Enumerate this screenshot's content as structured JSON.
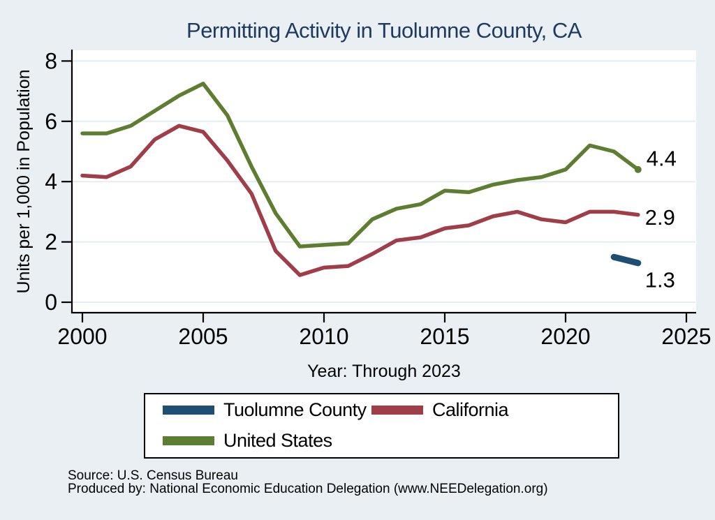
{
  "title": "Permitting Activity in Tuolumne County, CA",
  "chart_data": {
    "type": "line",
    "title": "Permitting Activity in Tuolumne County, CA",
    "xlabel": "Year: Through 2023",
    "ylabel": "Units per 1,000 in Population",
    "x_ticks": [
      "2000",
      "2005",
      "2010",
      "2015",
      "2020",
      "2025"
    ],
    "y_ticks": [
      "0",
      "2",
      "4",
      "6",
      "8"
    ],
    "xlim": [
      2000,
      2025
    ],
    "ylim": [
      0,
      8
    ],
    "grid": "horizontal gridlines only",
    "legend_position": "bottom",
    "background_color": "#e9eff2",
    "plot_background_color": "#ffffff",
    "gridline_color": "#e2edf3",
    "title_color": "#1e3a5f",
    "series": [
      {
        "name": "Tuolumne County",
        "color": "#1f4e74",
        "stroke_width": 9,
        "years": [
          2022,
          2023
        ],
        "values": [
          1.5,
          1.3
        ],
        "end_label": "1.3",
        "end_dot": false,
        "label_offset": [
          10,
          24
        ]
      },
      {
        "name": "California",
        "color": "#9f3e49",
        "stroke_width": 5.5,
        "years": [
          2000,
          2001,
          2002,
          2003,
          2004,
          2005,
          2006,
          2007,
          2008,
          2009,
          2010,
          2011,
          2012,
          2013,
          2014,
          2015,
          2016,
          2017,
          2018,
          2019,
          2020,
          2021,
          2022,
          2023
        ],
        "values": [
          4.2,
          4.15,
          4.5,
          5.4,
          5.85,
          5.65,
          4.7,
          3.6,
          1.7,
          0.9,
          1.15,
          1.2,
          1.6,
          2.05,
          2.15,
          2.45,
          2.55,
          2.85,
          3.0,
          2.75,
          2.65,
          3.0,
          3.0,
          2.9
        ],
        "end_label": "2.9",
        "end_dot": false,
        "label_offset": [
          10,
          4
        ]
      },
      {
        "name": "United States",
        "color": "#5d7d31",
        "stroke_width": 5.5,
        "years": [
          2000,
          2001,
          2002,
          2003,
          2004,
          2005,
          2006,
          2007,
          2008,
          2009,
          2010,
          2011,
          2012,
          2013,
          2014,
          2015,
          2016,
          2017,
          2018,
          2019,
          2020,
          2021,
          2022,
          2023
        ],
        "values": [
          5.6,
          5.6,
          5.85,
          6.35,
          6.85,
          7.25,
          6.2,
          4.5,
          2.95,
          1.85,
          1.9,
          1.95,
          2.75,
          3.1,
          3.25,
          3.7,
          3.65,
          3.9,
          4.05,
          4.15,
          4.4,
          5.2,
          5.0,
          4.4
        ],
        "end_label": "4.4",
        "end_dot": true,
        "label_offset": [
          12,
          -16
        ]
      }
    ]
  },
  "legend": {
    "items": [
      {
        "label": "Tuolumne County",
        "color": "#1f4e74"
      },
      {
        "label": "California",
        "color": "#9f3e49"
      },
      {
        "label": "United States",
        "color": "#5d7d31"
      }
    ]
  },
  "footer": {
    "source": "Source: U.S. Census Bureau",
    "produced_by": "Produced by: National Economic Education Delegation (www.NEEDelegation.org)"
  }
}
